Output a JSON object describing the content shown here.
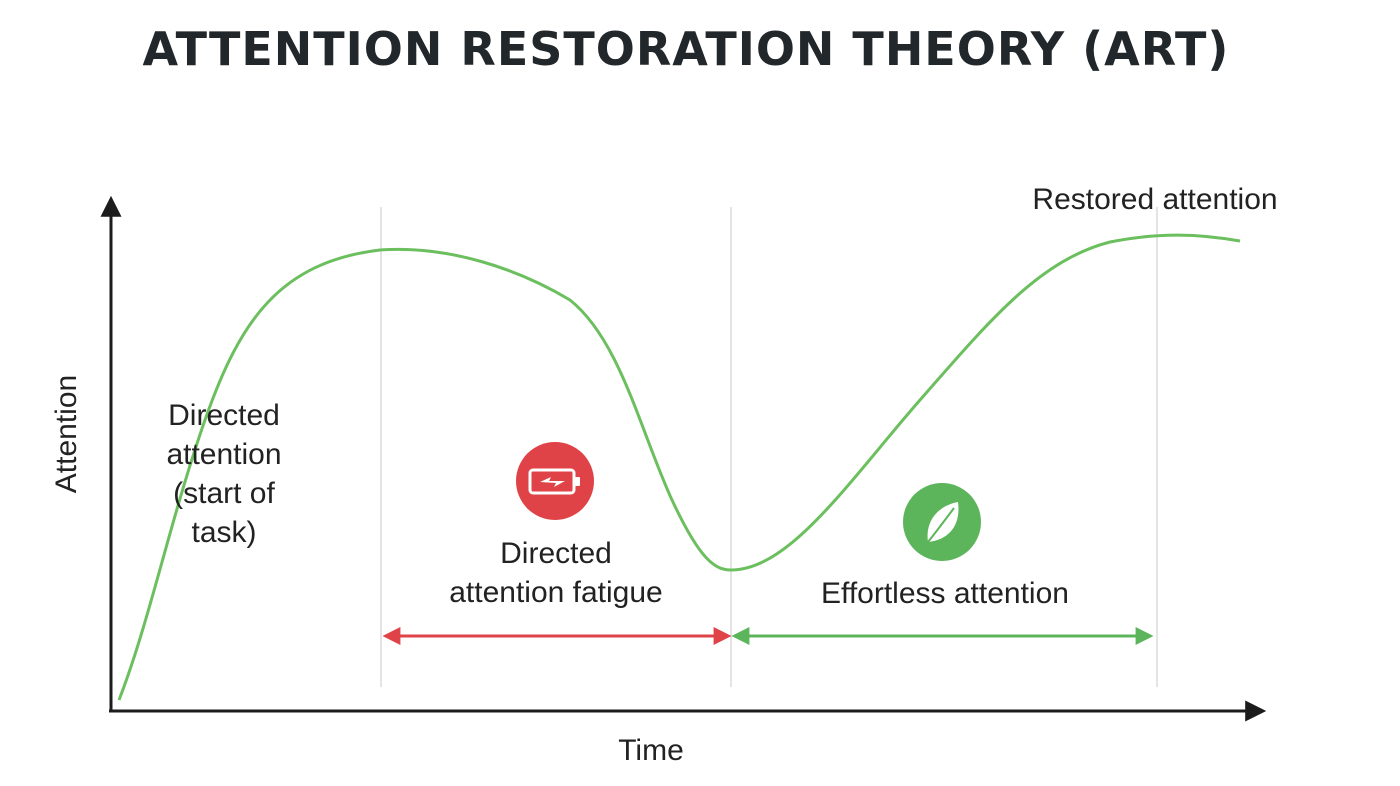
{
  "title": "ATTENTION RESTORATION THEORY (ART)",
  "axes": {
    "x_label": "Time",
    "y_label": "Attention"
  },
  "labels": {
    "directed_attention": [
      "Directed",
      "attention",
      "(start of",
      "task)"
    ],
    "fatigue": [
      "Directed",
      "attention fatigue"
    ],
    "effortless": "Effortless attention",
    "restored": "Restored attention"
  },
  "icons": {
    "fatigue_icon": "low-battery-icon",
    "effortless_icon": "leaf-icon"
  },
  "colors": {
    "curve": "#6cbf5e",
    "fatigue_red": "#df4347",
    "effortless_green": "#5cb55a",
    "axis": "#1c1c1c",
    "divider": "#dcdcdc",
    "title": "#22272b"
  }
}
